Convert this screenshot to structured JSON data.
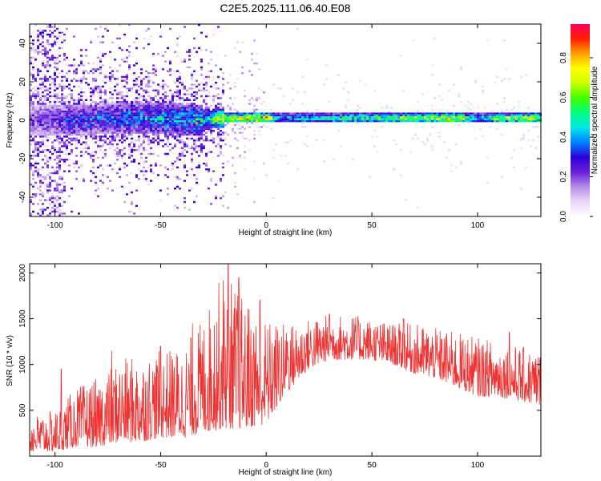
{
  "title": "C2E5.2025.111.06.40.E08",
  "chart_data": [
    {
      "type": "heatmap",
      "xlabel": "Height of straight line (km)",
      "ylabel": "Frequency (Hz)",
      "xlim": [
        -112,
        130
      ],
      "ylim": [
        -50,
        50
      ],
      "x_ticks": [
        -100,
        -50,
        0,
        50,
        100
      ],
      "y_ticks": [
        -40,
        -20,
        0,
        20,
        40
      ],
      "colorbar": {
        "label": "Normalized spectral amplitude",
        "range": [
          0,
          0.97
        ],
        "ticks": [
          0.0,
          0.2,
          0.4,
          0.6,
          0.8
        ],
        "colormap": [
          "#ffffff",
          "#e8d8f8",
          "#b48ce8",
          "#6a1fd8",
          "#2a00d8",
          "#0080ff",
          "#00e8e8",
          "#00ff80",
          "#40ff00",
          "#c8ff00",
          "#ffff00",
          "#ffa000",
          "#ff2000",
          "#ff0060"
        ]
      },
      "ridge": {
        "x": [
          -110,
          -90,
          -70,
          -50,
          -30,
          -20,
          0,
          5,
          20,
          40,
          60,
          80,
          90,
          100,
          110,
          130
        ],
        "center_hz": [
          0,
          0,
          1,
          1,
          0,
          1,
          1,
          1,
          1,
          1,
          1,
          1,
          1,
          1,
          1,
          1
        ],
        "peak_amplitude": [
          0.25,
          0.35,
          0.4,
          0.45,
          0.5,
          0.8,
          0.97,
          0.5,
          0.55,
          0.65,
          0.7,
          0.8,
          0.9,
          0.5,
          0.75,
          0.8
        ]
      }
    },
    {
      "type": "line",
      "xlabel": "Height of straight line (km)",
      "ylabel": "SNR (10 * v/v)",
      "xlim": [
        -112,
        130
      ],
      "ylim": [
        0,
        2100
      ],
      "x_ticks": [
        -100,
        -50,
        0,
        50,
        100
      ],
      "y_ticks": [
        500,
        1000,
        1500,
        2000
      ],
      "color": "#ee3333",
      "series": [
        {
          "x": [
            -112,
            -100,
            -90,
            -80,
            -70,
            -60,
            -50,
            -40,
            -30,
            -20,
            -10,
            0,
            10,
            20,
            30,
            40,
            50,
            60,
            70,
            80,
            90,
            100,
            110,
            120,
            130
          ],
          "low": [
            50,
            50,
            100,
            100,
            150,
            150,
            200,
            200,
            250,
            300,
            300,
            350,
            700,
            950,
            1050,
            1050,
            1050,
            1000,
            900,
            850,
            750,
            650,
            650,
            600,
            550
          ],
          "high": [
            450,
            500,
            750,
            850,
            1050,
            1100,
            1150,
            1200,
            1500,
            2050,
            1700,
            1500,
            1450,
            1500,
            1550,
            1550,
            1500,
            1450,
            1450,
            1400,
            1350,
            1300,
            1250,
            1200,
            1150
          ],
          "peaks": [
            [
              -97,
              950
            ],
            [
              -80,
              1200
            ],
            [
              -73,
              1150
            ],
            [
              -50,
              1200
            ],
            [
              -35,
              1450
            ],
            [
              -18,
              2100
            ],
            [
              -13,
              1950
            ],
            [
              -8,
              1600
            ],
            [
              -3,
              1700
            ],
            [
              10,
              1250
            ],
            [
              30,
              1550
            ],
            [
              65,
              1500
            ],
            [
              115,
              1350
            ]
          ]
        }
      ]
    }
  ]
}
